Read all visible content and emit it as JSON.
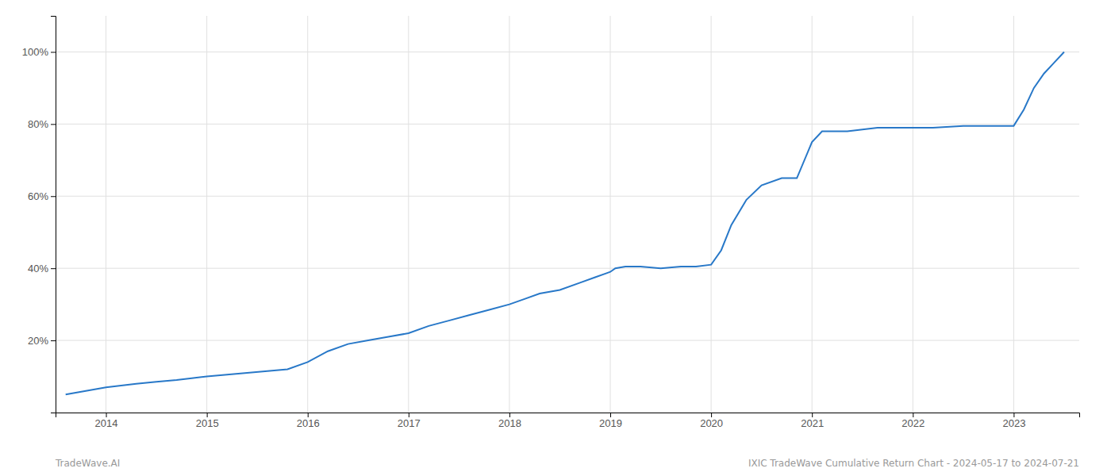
{
  "chart_data": {
    "type": "line",
    "x": [
      2013.6,
      2013.8,
      2014.0,
      2014.15,
      2014.3,
      2014.5,
      2014.7,
      2014.85,
      2015.0,
      2015.2,
      2015.4,
      2015.6,
      2015.8,
      2016.0,
      2016.2,
      2016.4,
      2016.6,
      2016.8,
      2017.0,
      2017.2,
      2017.4,
      2017.6,
      2017.8,
      2018.0,
      2018.15,
      2018.3,
      2018.5,
      2018.7,
      2018.85,
      2019.0,
      2019.05,
      2019.15,
      2019.3,
      2019.5,
      2019.7,
      2019.85,
      2020.0,
      2020.1,
      2020.2,
      2020.35,
      2020.5,
      2020.7,
      2020.85,
      2021.0,
      2021.1,
      2021.2,
      2021.35,
      2021.5,
      2021.65,
      2021.8,
      2022.0,
      2022.2,
      2022.5,
      2022.7,
      2022.85,
      2023.0,
      2023.1,
      2023.2,
      2023.3,
      2023.4,
      2023.5
    ],
    "values": [
      5,
      6,
      7,
      7.5,
      8,
      8.5,
      9,
      9.5,
      10,
      10.5,
      11,
      11.5,
      12,
      14,
      17,
      19,
      20,
      21,
      22,
      24,
      25.5,
      27,
      28.5,
      30,
      31.5,
      33,
      34,
      36,
      37.5,
      39,
      40,
      40.5,
      40.5,
      40,
      40.5,
      40.5,
      41,
      45,
      52,
      59,
      63,
      65,
      65,
      75,
      78,
      78,
      78,
      78.5,
      79,
      79,
      79,
      79,
      79.5,
      79.5,
      79.5,
      79.5,
      84,
      90,
      94,
      97,
      100
    ],
    "color": "#2878c8",
    "xlim": [
      2013.5,
      2023.65
    ],
    "xticks": [
      2014,
      2015,
      2016,
      2017,
      2018,
      2019,
      2020,
      2021,
      2022,
      2023
    ],
    "ylim": [
      0,
      110
    ],
    "yticks": [
      {
        "value": 20,
        "label": "20%"
      },
      {
        "value": 40,
        "label": "40%"
      },
      {
        "value": 60,
        "label": "60%"
      },
      {
        "value": 80,
        "label": "80%"
      },
      {
        "value": 100,
        "label": "100%"
      }
    ],
    "grid": true,
    "annotations": [
      "TradeWave.AI",
      "IXIC TradeWave Cumulative Return Chart - 2024-05-17 to 2024-07-21"
    ]
  }
}
